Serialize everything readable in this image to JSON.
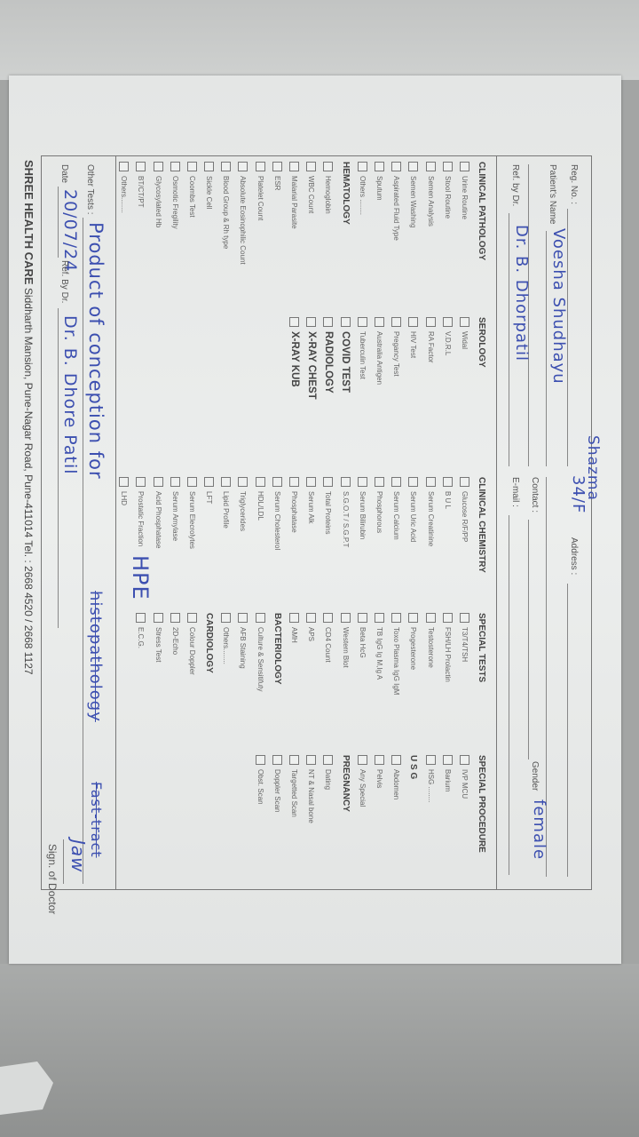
{
  "header": {
    "reg_no_label": "Reg. No. :",
    "patient_name_label": "Patient's Name",
    "ref_by_label": "Ref. by Dr.",
    "address_label": "Address :",
    "contact_label": "Contact :",
    "email_label": "E-mail :",
    "gender_label": "Gender",
    "reg_no_value": "Shazma",
    "age_sex_value": "34/F",
    "patient_name_value": "Voesha Shudhayu",
    "ref_by_value": "Dr. B. Dhorpatil",
    "gender_value": "female"
  },
  "columns": [
    {
      "title": "CLINICAL PATHOLOGY",
      "items": [
        {
          "label": "Urine Routine"
        },
        {
          "label": "Stool Routine"
        },
        {
          "label": "Semen Analysis"
        },
        {
          "label": "Semen Washing"
        },
        {
          "label": "Aspirated Fluid Type"
        },
        {
          "label": "Sputum"
        },
        {
          "label": "Others ........"
        },
        {
          "label": "HEMATOLOGY",
          "kind": "head"
        },
        {
          "label": "Hemoglobin"
        },
        {
          "label": "WBC Count"
        },
        {
          "label": "Malarial Parasite"
        },
        {
          "label": "ESR"
        },
        {
          "label": "Platelet Count"
        },
        {
          "label": "Absolute Eosinophilic Count"
        },
        {
          "label": "Blood Group & Rh type"
        },
        {
          "label": "Sickle Cell"
        },
        {
          "label": "Coombs Test"
        },
        {
          "label": "Osmotic Fregility"
        },
        {
          "label": "Glycosylated Hb"
        },
        {
          "label": "BT/CT/PT"
        },
        {
          "label": "Others........"
        }
      ]
    },
    {
      "title": "SEROLOGY",
      "items": [
        {
          "label": "Widal"
        },
        {
          "label": "V.D.R.L"
        },
        {
          "label": "RA Factor"
        },
        {
          "label": "HIV Test"
        },
        {
          "label": "Pregancy Test"
        },
        {
          "label": "Australia Antigen"
        },
        {
          "label": "Tuberculin Test"
        },
        {
          "label": "COVID TEST",
          "kind": "big"
        },
        {
          "label": "RADIOLOGY",
          "kind": "big"
        },
        {
          "label": "X-RAY CHEST",
          "kind": "big"
        },
        {
          "label": "X-RAY KUB",
          "kind": "big"
        }
      ]
    },
    {
      "title": "CLINICAL CHEMISTRY",
      "items": [
        {
          "label": "Glucose R/F/PP"
        },
        {
          "label": "B U L"
        },
        {
          "label": "Serum Creatinine"
        },
        {
          "label": "Serum Uric Acid"
        },
        {
          "label": "Serum Calcium"
        },
        {
          "label": "Phosphorous"
        },
        {
          "label": "Serum Bilirubin"
        },
        {
          "label": "S.G.O.T / S.G.P.T"
        },
        {
          "label": "Total Proteins"
        },
        {
          "label": "Serum Alk"
        },
        {
          "label": "Phosphatase"
        },
        {
          "label": "Serum Cholesterol"
        },
        {
          "label": "HDL/LDL"
        },
        {
          "label": "Triglycerides"
        },
        {
          "label": "Lipid Profile"
        },
        {
          "label": "LFT"
        },
        {
          "label": "Serum Elecrolytes"
        },
        {
          "label": "Serum Amylase"
        },
        {
          "label": "Acid Phosphatase"
        },
        {
          "label": "Prostatic Fraction"
        },
        {
          "label": "LHD"
        }
      ]
    },
    {
      "title": "SPECIAL TESTS",
      "items": [
        {
          "label": "T3/T4/TSH"
        },
        {
          "label": "FSH/LH Prolactin"
        },
        {
          "label": "Testosterone"
        },
        {
          "label": "Progesterone"
        },
        {
          "label": "Toxo Plasma IgG IgM"
        },
        {
          "label": "TB IgG Ig M,Ig A"
        },
        {
          "label": "Beta HcG"
        },
        {
          "label": "Western Blot"
        },
        {
          "label": "CD4 Count"
        },
        {
          "label": "APS"
        },
        {
          "label": "AMH"
        },
        {
          "label": "BACTERIOLOGY",
          "kind": "head",
          "nobox": true
        },
        {
          "label": "Culture & Sensitifuty"
        },
        {
          "label": "AFB Staining"
        },
        {
          "label": "Others........"
        },
        {
          "label": "CARDIOLOGY",
          "kind": "head",
          "nobox": true
        },
        {
          "label": "Colour Doppler"
        },
        {
          "label": "2D-Echo"
        },
        {
          "label": "Stress Test"
        },
        {
          "label": "E.C.G."
        }
      ]
    },
    {
      "title": "SPECIAL PROCEDURE",
      "items": [
        {
          "label": "IVP MCU"
        },
        {
          "label": "Barium"
        },
        {
          "label": "HSG ........"
        },
        {
          "label": "U S G",
          "kind": "head",
          "nobox": true
        },
        {
          "label": "Abdomen"
        },
        {
          "label": "Pelvis"
        },
        {
          "label": "Any Special"
        },
        {
          "label": "PREGNANCY",
          "kind": "head",
          "nobox": true
        },
        {
          "label": "Dating"
        },
        {
          "label": "NT & Nasal bone"
        },
        {
          "label": "Targetted Scan"
        },
        {
          "label": "Doppler Scan"
        },
        {
          "label": "Obst. Scan"
        }
      ]
    }
  ],
  "annotations": {
    "hpe": "HPE"
  },
  "footer_form": {
    "other_tests_label": "Other Tests :",
    "other_tests_value": "Product of conception for",
    "other_tests_struck_1": "histopathology",
    "other_tests_struck_2": "Fast-tract",
    "date_label": "Date",
    "date_value": "20/07/24",
    "ref_by_label": "Ref. By Dr.",
    "ref_by_value": "Dr. B. Dhore Patil",
    "signature_label": "Sign. of Doctor",
    "signature_value": "Jaw"
  },
  "footer": {
    "brand": "SHREE HEALTH CARE",
    "address": "Siddharth Mansion, Pune-Nagar Road, Pune-411014 Tel. : 2668 4520 / 2668 1127"
  },
  "colors": {
    "ink": "#3c4fb0",
    "paper": "#e9ebea",
    "print": "#555555"
  }
}
